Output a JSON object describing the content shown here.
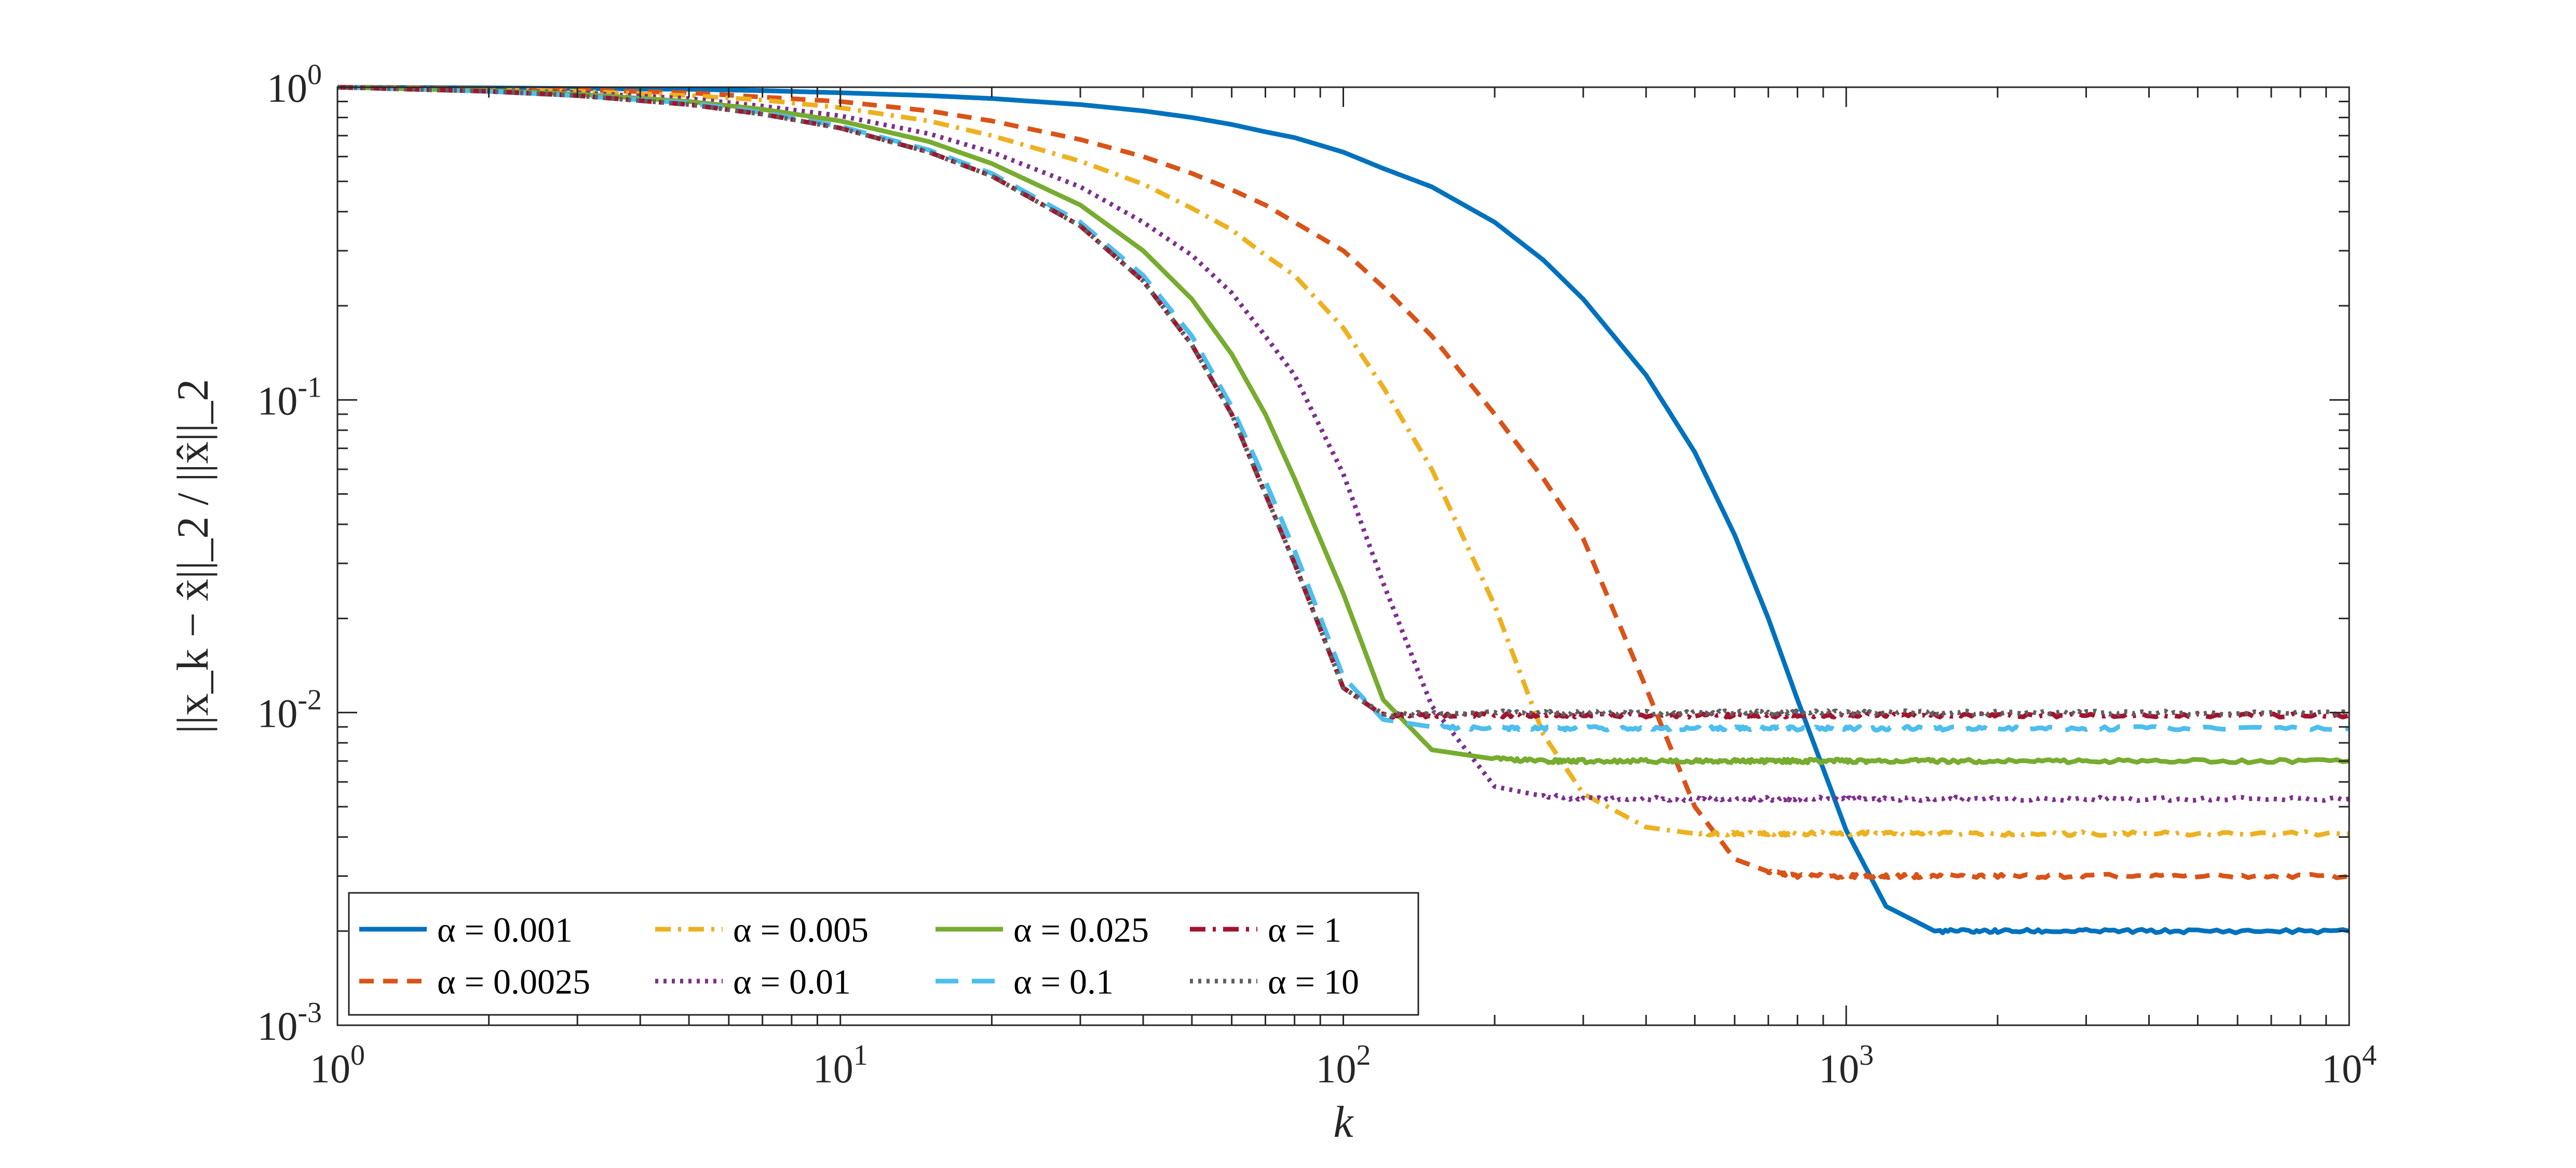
{
  "chart_data": {
    "type": "line",
    "title": "",
    "xlabel": "k",
    "ylabel": "||x_k − x̂||_2 / ||x̂||_2",
    "xscale": "log",
    "yscale": "log",
    "xlim": [
      1,
      10000
    ],
    "ylim": [
      0.001,
      1
    ],
    "xticks": [
      {
        "base": "10",
        "exp": "0"
      },
      {
        "base": "10",
        "exp": "1"
      },
      {
        "base": "10",
        "exp": "2"
      },
      {
        "base": "10",
        "exp": "3"
      },
      {
        "base": "10",
        "exp": "4"
      }
    ],
    "yticks": [
      {
        "base": "10",
        "exp": "-3"
      },
      {
        "base": "10",
        "exp": "-2"
      },
      {
        "base": "10",
        "exp": "-1"
      },
      {
        "base": "10",
        "exp": "0"
      }
    ],
    "grid": false,
    "legend_position": "bottom-left",
    "x": [
      1,
      2,
      3,
      5,
      7,
      10,
      15,
      20,
      30,
      40,
      50,
      60,
      70,
      80,
      100,
      120,
      150,
      200,
      250,
      300,
      400,
      500,
      600,
      700,
      800,
      1000,
      1200,
      1500,
      2000,
      3000,
      5000,
      10000
    ],
    "series": [
      {
        "name": "α = 0.001",
        "color": "#0072BD",
        "dash": "solid",
        "values": [
          1.0,
          0.995,
          0.99,
          0.985,
          0.975,
          0.96,
          0.94,
          0.92,
          0.88,
          0.84,
          0.8,
          0.76,
          0.72,
          0.69,
          0.62,
          0.55,
          0.48,
          0.37,
          0.28,
          0.21,
          0.12,
          0.068,
          0.037,
          0.02,
          0.011,
          0.0042,
          0.0024,
          0.002,
          0.002,
          0.002,
          0.002,
          0.002
        ]
      },
      {
        "name": "α = 0.0025",
        "color": "#D95319",
        "dash": "dashed",
        "values": [
          1.0,
          0.99,
          0.98,
          0.96,
          0.93,
          0.9,
          0.84,
          0.78,
          0.68,
          0.6,
          0.53,
          0.47,
          0.42,
          0.37,
          0.3,
          0.23,
          0.16,
          0.09,
          0.056,
          0.036,
          0.012,
          0.005,
          0.0034,
          0.0031,
          0.003,
          0.003,
          0.003,
          0.003,
          0.003,
          0.003,
          0.003,
          0.003
        ]
      },
      {
        "name": "α = 0.005",
        "color": "#EDB120",
        "dash": "dashdot",
        "values": [
          1.0,
          0.985,
          0.97,
          0.94,
          0.91,
          0.86,
          0.78,
          0.7,
          0.58,
          0.49,
          0.41,
          0.35,
          0.29,
          0.25,
          0.17,
          0.11,
          0.06,
          0.022,
          0.0085,
          0.0055,
          0.0043,
          0.0041,
          0.0041,
          0.0041,
          0.0041,
          0.0041,
          0.0041,
          0.0041,
          0.0041,
          0.0041,
          0.0041,
          0.0041
        ]
      },
      {
        "name": "α = 0.01",
        "color": "#7E2F8E",
        "dash": "dotted",
        "values": [
          1.0,
          0.98,
          0.96,
          0.92,
          0.87,
          0.81,
          0.71,
          0.62,
          0.48,
          0.37,
          0.29,
          0.22,
          0.16,
          0.12,
          0.058,
          0.026,
          0.0105,
          0.0058,
          0.0054,
          0.0053,
          0.0053,
          0.0053,
          0.0053,
          0.0053,
          0.0053,
          0.0053,
          0.0053,
          0.0053,
          0.0053,
          0.0053,
          0.0053,
          0.0053
        ]
      },
      {
        "name": "α = 0.025",
        "color": "#77AC30",
        "dash": "solid",
        "values": [
          1.0,
          0.975,
          0.95,
          0.9,
          0.85,
          0.78,
          0.67,
          0.57,
          0.42,
          0.3,
          0.21,
          0.14,
          0.09,
          0.056,
          0.024,
          0.011,
          0.0076,
          0.0071,
          0.007,
          0.007,
          0.007,
          0.007,
          0.007,
          0.007,
          0.007,
          0.007,
          0.007,
          0.007,
          0.007,
          0.007,
          0.007,
          0.007
        ]
      },
      {
        "name": "α = 0.1",
        "color": "#4DBEEE",
        "dash": "dashed-long",
        "values": [
          1.0,
          0.97,
          0.94,
          0.89,
          0.83,
          0.75,
          0.63,
          0.53,
          0.37,
          0.25,
          0.16,
          0.095,
          0.055,
          0.033,
          0.013,
          0.0095,
          0.009,
          0.0089,
          0.0089,
          0.0089,
          0.0089,
          0.0089,
          0.0089,
          0.0089,
          0.0089,
          0.0089,
          0.0089,
          0.0089,
          0.0089,
          0.0089,
          0.0089,
          0.0089
        ]
      },
      {
        "name": "α = 1",
        "color": "#A2142F",
        "dash": "dashdot",
        "values": [
          1.0,
          0.97,
          0.94,
          0.88,
          0.82,
          0.74,
          0.62,
          0.52,
          0.36,
          0.24,
          0.15,
          0.09,
          0.05,
          0.03,
          0.012,
          0.0098,
          0.0098,
          0.0098,
          0.0098,
          0.0098,
          0.0098,
          0.0098,
          0.0098,
          0.0098,
          0.0098,
          0.0098,
          0.0098,
          0.0098,
          0.0098,
          0.0098,
          0.0098,
          0.0098
        ]
      },
      {
        "name": "α = 10",
        "color": "#606060",
        "dash": "dotted",
        "values": [
          1.0,
          0.97,
          0.94,
          0.88,
          0.82,
          0.74,
          0.62,
          0.52,
          0.36,
          0.24,
          0.15,
          0.09,
          0.05,
          0.03,
          0.012,
          0.0099,
          0.0099,
          0.01,
          0.01,
          0.01,
          0.01,
          0.01,
          0.01,
          0.01,
          0.01,
          0.01,
          0.01,
          0.01,
          0.01,
          0.01,
          0.01,
          0.01
        ]
      }
    ]
  }
}
